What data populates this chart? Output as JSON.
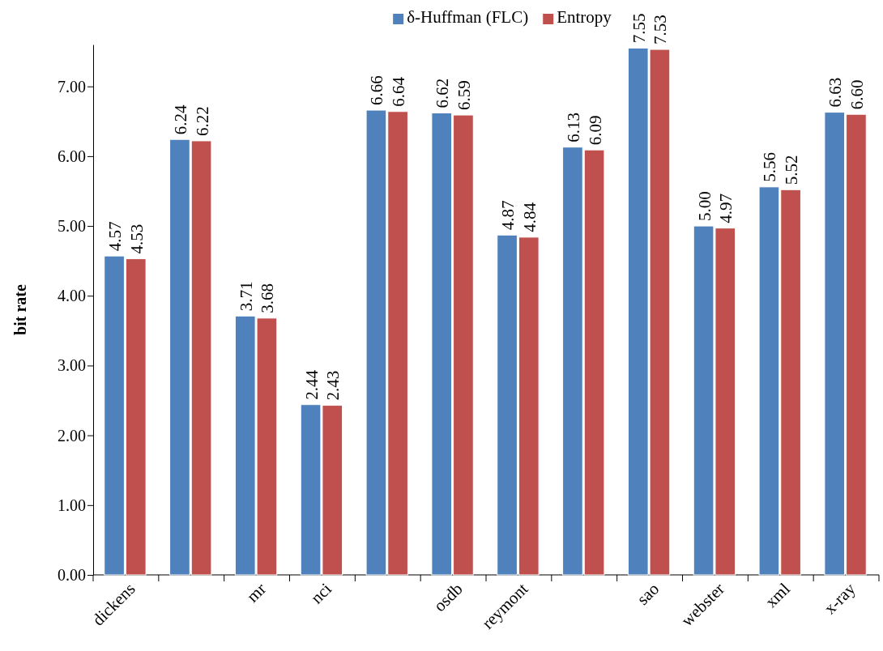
{
  "chart_data": {
    "type": "bar",
    "ylabel": "bit rate",
    "categories": [
      "dickens",
      null,
      "mr",
      "nci",
      null,
      "osdb",
      "reymont",
      null,
      "sao",
      "webster",
      "xml",
      "x-ray"
    ],
    "series": [
      {
        "name": "δ-Huffman (FLC)",
        "color": "#4f81bd",
        "values": [
          4.57,
          6.24,
          3.71,
          2.44,
          6.66,
          6.62,
          4.87,
          6.13,
          7.55,
          5.0,
          5.56,
          6.63
        ],
        "value_labels": [
          "4.57",
          "6.24",
          "3.71",
          "2.44",
          "6.66",
          "6.62",
          "4.87",
          "6.13",
          "7.55",
          "5.00",
          "5.56",
          "6.63"
        ]
      },
      {
        "name": "Entropy",
        "color": "#c0504d",
        "values": [
          4.53,
          6.22,
          3.68,
          2.43,
          6.64,
          6.59,
          4.84,
          6.09,
          7.53,
          4.97,
          5.52,
          6.6
        ],
        "value_labels": [
          "4.53",
          "6.22",
          "3.68",
          "2.43",
          "6.64",
          "6.59",
          "4.84",
          "6.09",
          "7.53",
          "4.97",
          "5.52",
          "6.60"
        ]
      }
    ],
    "ylim": [
      0,
      7.6
    ],
    "yticks": [
      {
        "value": 0,
        "label": "0.00"
      },
      {
        "value": 1,
        "label": "1.00"
      },
      {
        "value": 2,
        "label": "2.00"
      },
      {
        "value": 3,
        "label": "3.00"
      },
      {
        "value": 4,
        "label": "4.00"
      },
      {
        "value": 5,
        "label": "5.00"
      },
      {
        "value": 6,
        "label": "6.00"
      },
      {
        "value": 7,
        "label": "7.00"
      }
    ],
    "grid": false,
    "legend": "top"
  }
}
